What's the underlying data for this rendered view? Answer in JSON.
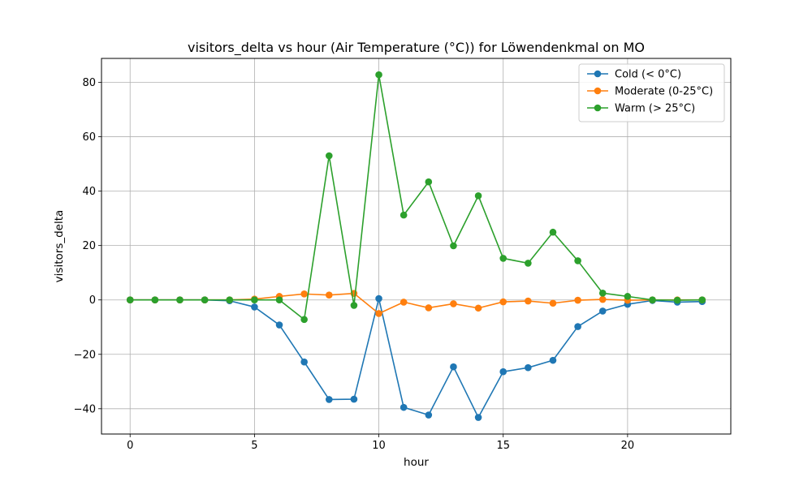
{
  "chart_data": {
    "type": "line",
    "title": "visitors_delta vs hour (Air Temperature (°C)) for Löwendenkmal on MO",
    "xlabel": "hour",
    "ylabel": "visitors_delta",
    "xlim": [
      -1.15,
      24.15
    ],
    "ylim": [
      -49.3,
      88.8
    ],
    "xticks": [
      0,
      5,
      10,
      15,
      20
    ],
    "yticks": [
      -40,
      -20,
      0,
      20,
      40,
      60,
      80
    ],
    "grid": true,
    "legend_position": "top-right",
    "x": [
      0,
      1,
      2,
      3,
      4,
      5,
      6,
      7,
      8,
      9,
      10,
      11,
      12,
      13,
      14,
      15,
      16,
      17,
      18,
      19,
      20,
      21,
      22,
      23
    ],
    "series": [
      {
        "name": "Cold (< 0°C)",
        "color": "#1f77b4",
        "values": [
          0,
          0,
          0,
          0,
          -0.3,
          -2.6,
          -9.2,
          -22.8,
          -36.6,
          -36.5,
          0.5,
          -39.5,
          -42.3,
          -24.6,
          -43.2,
          -26.4,
          -24.9,
          -22.2,
          -9.8,
          -4.1,
          -1.6,
          -0.2,
          -0.8,
          -0.6
        ]
      },
      {
        "name": "Moderate (0-25°C)",
        "color": "#ff7f0e",
        "values": [
          0,
          0,
          0,
          0,
          0,
          0.3,
          1.3,
          2.2,
          1.8,
          2.4,
          -5.0,
          -0.8,
          -2.9,
          -1.4,
          -3.0,
          -0.7,
          -0.4,
          -1.2,
          -0.1,
          0.2,
          -0.1,
          0,
          0,
          0
        ]
      },
      {
        "name": "Warm (> 25°C)",
        "color": "#2ca02c",
        "values": [
          0,
          0,
          0,
          0,
          0,
          0,
          0,
          -7.2,
          53.0,
          -2.0,
          82.8,
          31.2,
          43.4,
          19.9,
          38.3,
          15.3,
          13.5,
          24.9,
          14.4,
          2.5,
          1.3,
          0,
          -0.1,
          0
        ]
      }
    ]
  }
}
